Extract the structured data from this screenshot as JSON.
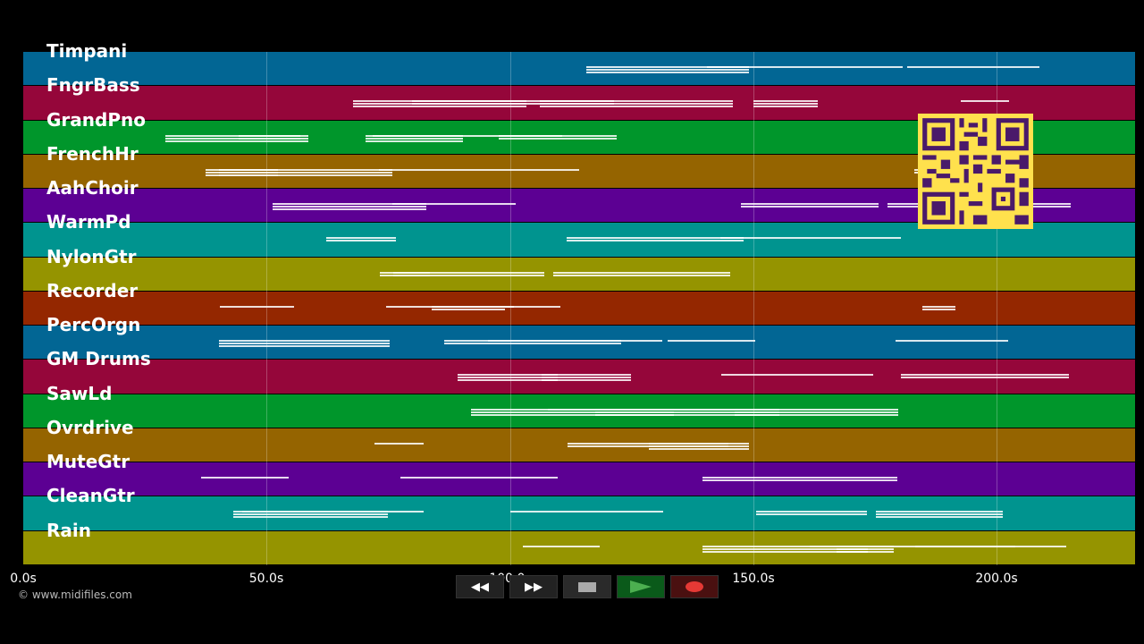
{
  "tracks": [
    {
      "name": "Timpani",
      "color": "#026694"
    },
    {
      "name": "FngrBass",
      "color": "#95063a"
    },
    {
      "name": "GrandPno",
      "color": "#00962b"
    },
    {
      "name": "FrenchHr",
      "color": "#956400"
    },
    {
      "name": "AahChoir",
      "color": "#5c0093"
    },
    {
      "name": "WarmPd",
      "color": "#00948f"
    },
    {
      "name": "NylonGtr",
      "color": "#959400"
    },
    {
      "name": "Recorder",
      "color": "#942700"
    },
    {
      "name": "PercOrgn",
      "color": "#026694"
    },
    {
      "name": "GM Drums",
      "color": "#95063a"
    },
    {
      "name": "SawLd",
      "color": "#00962b"
    },
    {
      "name": "Ovrdrive",
      "color": "#956400"
    },
    {
      "name": "MuteGtr",
      "color": "#5c0093"
    },
    {
      "name": "CleanGtr",
      "color": "#00948f"
    },
    {
      "name": "Rain",
      "color": "#959400"
    }
  ],
  "timeline": {
    "ticks": [
      "0.0s",
      "50.0s",
      "100.0s",
      "150.0s",
      "200.0s"
    ]
  },
  "transport": {
    "rewind_icon": "rewind-icon",
    "forward_icon": "fast-forward-icon",
    "stop_icon": "stop-icon",
    "play_icon": "play-icon",
    "record_icon": "record-icon"
  },
  "footer": {
    "copyright": "© www.midifiles.com"
  }
}
